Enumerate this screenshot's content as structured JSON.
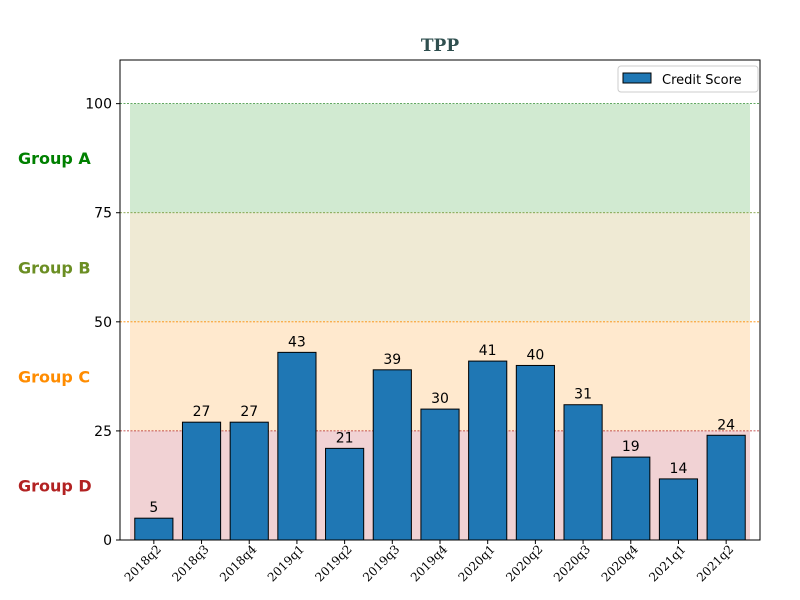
{
  "chart_data": {
    "type": "bar",
    "title": "TPP",
    "xlabel": "",
    "ylabel": "",
    "categories": [
      "2018q2",
      "2018q3",
      "2018q4",
      "2019q1",
      "2019q2",
      "2019q3",
      "2019q4",
      "2020q1",
      "2020q2",
      "2020q3",
      "2020q4",
      "2021q1",
      "2021q2"
    ],
    "series": [
      {
        "name": "Credit Score",
        "values": [
          5,
          27,
          27,
          43,
          21,
          39,
          30,
          41,
          40,
          31,
          19,
          14,
          24
        ],
        "color": "#1f77b4"
      }
    ],
    "ylim": [
      0,
      110
    ],
    "yticks": [
      0,
      25,
      50,
      75,
      100
    ],
    "legend_position": "top-right",
    "grid": false,
    "bands": [
      {
        "label": "Group A",
        "from": 75,
        "to": 100,
        "fill": "#2ca02c",
        "fill_opacity": 0.22,
        "line_color": "#2e8b2e",
        "label_color": "#008000"
      },
      {
        "label": "Group B",
        "from": 50,
        "to": 75,
        "fill": "#b5a03a",
        "fill_opacity": 0.22,
        "line_color": "#6b8e23",
        "label_color": "#6b8e23"
      },
      {
        "label": "Group C",
        "from": 25,
        "to": 50,
        "fill": "#ff9a1f",
        "fill_opacity": 0.22,
        "line_color": "#ff8c00",
        "label_color": "#ff8c00"
      },
      {
        "label": "Group D",
        "from": 0,
        "to": 25,
        "fill": "#c0303a",
        "fill_opacity": 0.22,
        "line_color": "#b22222",
        "label_color": "#b22222"
      }
    ]
  }
}
